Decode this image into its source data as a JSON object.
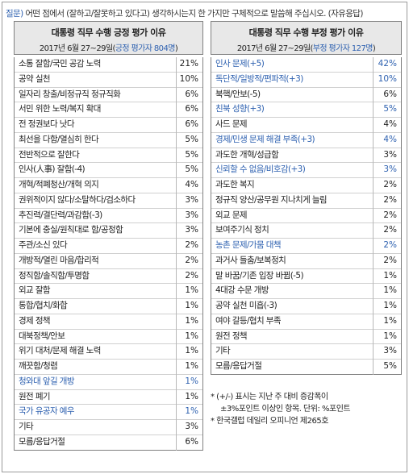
{
  "question": {
    "tag": "질문)",
    "text": " 어떤 점에서 (잘하고/잘못하고 있다고) 생각하시는지 한 가지만 구체적으로 말씀해 주십시오. (자유응답)"
  },
  "positive": {
    "title": "대통령 직무 수행 긍정 평가 이유",
    "subtitle_prefix": "2017년 6월 27~29일(",
    "subtitle_highlight": "긍정 평가자 804명",
    "subtitle_suffix": ")",
    "rows": [
      {
        "label": "소통 잘함/국민 공감 노력",
        "value": "21%",
        "blue": false
      },
      {
        "label": "공약 실천",
        "value": "10%",
        "blue": false
      },
      {
        "label": "일자리 창출/비정규직 정규직화",
        "value": "6%",
        "blue": false
      },
      {
        "label": "서민 위한 노력/복지 확대",
        "value": "6%",
        "blue": false
      },
      {
        "label": "전 정권보다 낫다",
        "value": "6%",
        "blue": false
      },
      {
        "label": "최선을 다함/열심히 한다",
        "value": "5%",
        "blue": false
      },
      {
        "label": "전반적으로 잘한다",
        "value": "5%",
        "blue": false
      },
      {
        "label": "인사(人事) 잘함(-4)",
        "value": "5%",
        "blue": false
      },
      {
        "label": "개혁/적폐청산/개혁 의지",
        "value": "4%",
        "blue": false
      },
      {
        "label": "권위적이지 않다/소탈하다/검소하다",
        "value": "3%",
        "blue": false
      },
      {
        "label": "추진력/결단력/과감함(-3)",
        "value": "3%",
        "blue": false
      },
      {
        "label": "기본에 충실/원칙대로 함/공정함",
        "value": "3%",
        "blue": false
      },
      {
        "label": "주관/소신 있다",
        "value": "2%",
        "blue": false
      },
      {
        "label": "개방적/열린 마음/합리적",
        "value": "2%",
        "blue": false
      },
      {
        "label": "정직함/솔직함/투명함",
        "value": "2%",
        "blue": false
      },
      {
        "label": "외교 잘함",
        "value": "1%",
        "blue": false
      },
      {
        "label": "통합/협치/화합",
        "value": "1%",
        "blue": false
      },
      {
        "label": "경제 정책",
        "value": "1%",
        "blue": false
      },
      {
        "label": "대북정책/안보",
        "value": "1%",
        "blue": false
      },
      {
        "label": "위기 대처/문제 해결 노력",
        "value": "1%",
        "blue": false
      },
      {
        "label": "깨끗함/청렴",
        "value": "1%",
        "blue": false
      },
      {
        "label": "청와대 앞길 개방",
        "value": "1%",
        "blue": true
      },
      {
        "label": "원전 폐기",
        "value": "1%",
        "blue": false
      },
      {
        "label": "국가 유공자 예우",
        "value": "1%",
        "blue": true
      },
      {
        "label": "기타",
        "value": "3%",
        "blue": false
      },
      {
        "label": "모름/응답거절",
        "value": "6%",
        "blue": false
      }
    ]
  },
  "negative": {
    "title": "대통령 직무 수행 부정 평가 이유",
    "subtitle_prefix": "2017년 6월 27~29일(",
    "subtitle_highlight": "부정 평가자 127명",
    "subtitle_suffix": ")",
    "rows": [
      {
        "label": "인사 문제(+5)",
        "value": "42%",
        "blue": true
      },
      {
        "label": "독단적/일방적/편파적(+3)",
        "value": "10%",
        "blue": true
      },
      {
        "label": "북핵/안보(-5)",
        "value": "6%",
        "blue": false
      },
      {
        "label": "친북 성향(+3)",
        "value": "5%",
        "blue": true
      },
      {
        "label": "사드 문제",
        "value": "4%",
        "blue": false
      },
      {
        "label": "경제/민생 문제 해결 부족(+3)",
        "value": "4%",
        "blue": true
      },
      {
        "label": "과도한 개혁/성급함",
        "value": "3%",
        "blue": false
      },
      {
        "label": "신뢰할 수 없음/비호감(+3)",
        "value": "3%",
        "blue": true
      },
      {
        "label": "과도한 복지",
        "value": "2%",
        "blue": false
      },
      {
        "label": "정규직 양산/공무원 지나치게 늘림",
        "value": "2%",
        "blue": false
      },
      {
        "label": "외교 문제",
        "value": "2%",
        "blue": false
      },
      {
        "label": "보여주기식 정치",
        "value": "2%",
        "blue": false
      },
      {
        "label": "농촌 문제/가뭄 대책",
        "value": "2%",
        "blue": true
      },
      {
        "label": "과거사 들춤/보복정치",
        "value": "2%",
        "blue": false
      },
      {
        "label": "말 바꿈/기존 입장 바뀜(-5)",
        "value": "1%",
        "blue": false
      },
      {
        "label": "4대강 수문 개방",
        "value": "1%",
        "blue": false
      },
      {
        "label": "공약 실천 미흡(-3)",
        "value": "1%",
        "blue": false
      },
      {
        "label": "여야 갈등/협치 부족",
        "value": "1%",
        "blue": false
      },
      {
        "label": "원전 정책",
        "value": "1%",
        "blue": false
      },
      {
        "label": "기타",
        "value": "3%",
        "blue": false
      },
      {
        "label": "모름/응답거절",
        "value": "5%",
        "blue": false
      }
    ]
  },
  "notes": {
    "line1": "* (+/-) 표시는 지난 주 대비 증감폭이",
    "line2": "±3%포인트 이상인 항목. 단위: %포인트",
    "line3": "* 한국갤럽 데일리 오피니언 제265호"
  }
}
